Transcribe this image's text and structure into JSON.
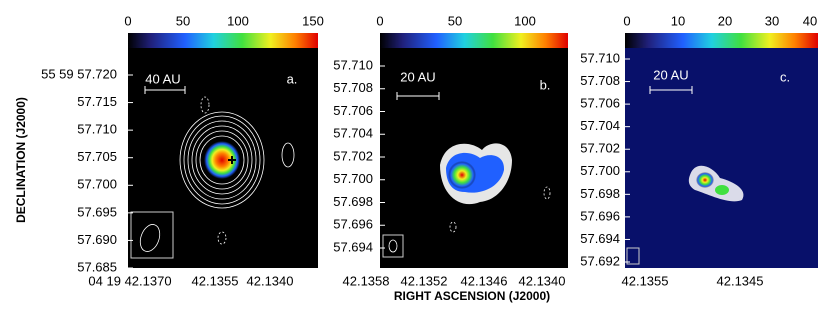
{
  "axis_titles": {
    "y": "DECLINATION (J2000)",
    "x": "RIGHT ASCENSION (J2000)"
  },
  "panels": [
    {
      "label": "a.",
      "scale_bar": "40 AU",
      "colorbar_ticks": [
        "0",
        "50",
        "100",
        "150"
      ],
      "y_ticks": [
        "55 59 57.720",
        "57.715",
        "57.710",
        "57.705",
        "57.700",
        "57.695",
        "57.690",
        "57.685"
      ],
      "x_ticks": [
        "04 19 42.1370",
        "42.1355",
        "42.1340"
      ]
    },
    {
      "label": "b.",
      "scale_bar": "20 AU",
      "colorbar_ticks": [
        "0",
        "50",
        "100"
      ],
      "y_ticks": [
        "57.710",
        "57.708",
        "57.706",
        "57.704",
        "57.702",
        "57.700",
        "57.698",
        "57.696",
        "57.694"
      ],
      "x_ticks": [
        "42.1358",
        "42.1352",
        "42.1346",
        "42.1340"
      ]
    },
    {
      "label": "c.",
      "scale_bar": "20 AU",
      "colorbar_ticks": [
        "0",
        "10",
        "20",
        "30",
        "40"
      ],
      "y_ticks": [
        "57.710",
        "57.708",
        "57.706",
        "57.704",
        "57.702",
        "57.700",
        "57.698",
        "57.696",
        "57.694",
        "57.692"
      ],
      "x_ticks": [
        "42.1355",
        "42.1345"
      ]
    }
  ]
}
